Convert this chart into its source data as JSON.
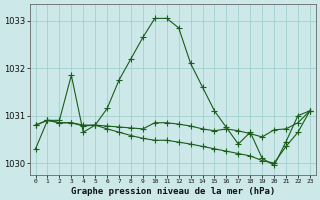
{
  "x": [
    0,
    1,
    2,
    3,
    4,
    5,
    6,
    7,
    8,
    9,
    10,
    11,
    12,
    13,
    14,
    15,
    16,
    17,
    18,
    19,
    20,
    21,
    22,
    23
  ],
  "line1": [
    1030.3,
    1030.9,
    1030.9,
    1031.85,
    1030.65,
    1030.8,
    1031.15,
    1031.75,
    1032.2,
    1032.65,
    1033.05,
    1033.05,
    1032.85,
    1032.1,
    1031.6,
    1031.1,
    1030.75,
    1030.4,
    1030.65,
    1030.1,
    1029.95,
    1030.45,
    1031.0,
    1031.1
  ],
  "line2": [
    1030.8,
    1030.9,
    1030.85,
    1030.85,
    1030.8,
    1030.8,
    1030.78,
    1030.76,
    1030.74,
    1030.72,
    1030.85,
    1030.85,
    1030.82,
    1030.78,
    1030.72,
    1030.68,
    1030.72,
    1030.68,
    1030.62,
    1030.55,
    1030.7,
    1030.72,
    1030.85,
    1031.1
  ],
  "line3": [
    1030.8,
    1030.9,
    1030.85,
    1030.85,
    1030.78,
    1030.8,
    1030.72,
    1030.65,
    1030.58,
    1030.52,
    1030.48,
    1030.48,
    1030.44,
    1030.4,
    1030.35,
    1030.3,
    1030.25,
    1030.2,
    1030.15,
    1030.05,
    1030.0,
    1030.35,
    1030.65,
    1031.1
  ],
  "ylim": [
    1029.75,
    1033.35
  ],
  "yticks": [
    1030,
    1031,
    1032,
    1033
  ],
  "xticks": [
    0,
    1,
    2,
    3,
    4,
    5,
    6,
    7,
    8,
    9,
    10,
    11,
    12,
    13,
    14,
    15,
    16,
    17,
    18,
    19,
    20,
    21,
    22,
    23
  ],
  "xtick_labels": [
    "0",
    "1",
    "2",
    "3",
    "4",
    "5",
    "6",
    "7",
    "8",
    "9",
    "10",
    "11",
    "12",
    "13",
    "14",
    "15",
    "16",
    "17",
    "18",
    "19",
    "20",
    "21",
    "22",
    "23"
  ],
  "line_color": "#1a5c1a",
  "bg_color": "#cce8e8",
  "grid_color": "#99cccc",
  "xlabel": "Graphe pression niveau de la mer (hPa)",
  "marker": "+",
  "markersize": 4.0,
  "linewidth": 0.8,
  "fig_width": 3.2,
  "fig_height": 2.0,
  "dpi": 100
}
